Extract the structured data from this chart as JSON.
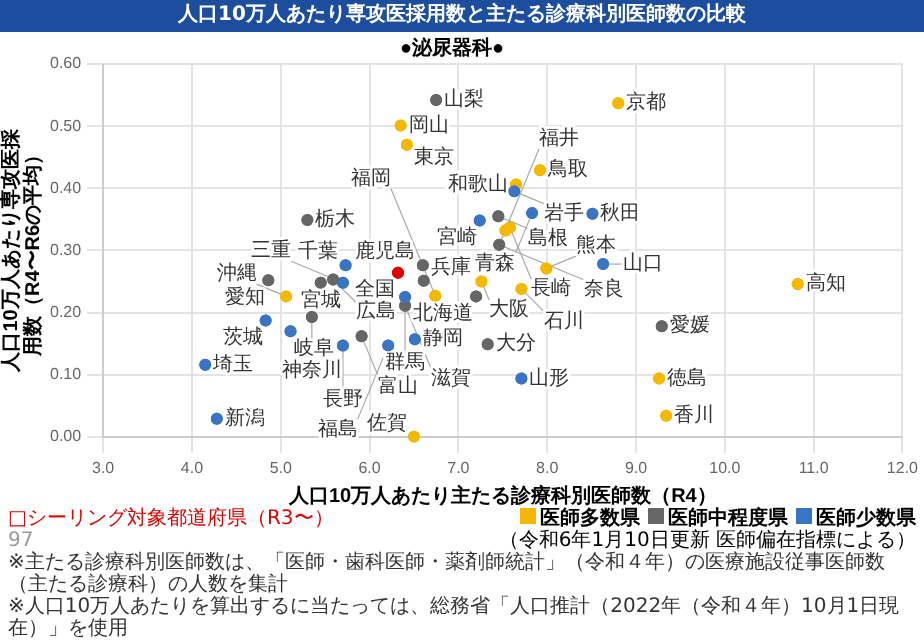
{
  "chart_data": {
    "type": "scatter",
    "title": "人口10万人あたり専攻医採用数と主たる診療科別医師数の比較",
    "subtitle": "●泌尿器科●",
    "xlabel": "人口10万人あたり主たる診療科別医師数（R4）",
    "ylabel": "人口10万人あたり専攻医採用数（R4〜R6の平均）",
    "xlim": [
      3,
      12
    ],
    "xticks": [
      {
        "value": 3,
        "label": "3.0"
      },
      {
        "value": 4,
        "label": "4.0"
      },
      {
        "value": 5,
        "label": "5.0"
      },
      {
        "value": 6,
        "label": "6.0"
      },
      {
        "value": 7,
        "label": "7.0"
      },
      {
        "value": 8,
        "label": "8.0"
      },
      {
        "value": 9,
        "label": "9.0"
      },
      {
        "value": 10,
        "label": "10.0"
      },
      {
        "value": 11,
        "label": "11.0"
      },
      {
        "value": 12,
        "label": "12.0"
      }
    ],
    "ylim": [
      0,
      0.6
    ],
    "yticks": [
      {
        "value": 0,
        "label": "0.00"
      },
      {
        "value": 0.1,
        "label": "0.10"
      },
      {
        "value": 0.2,
        "label": "0.20"
      },
      {
        "value": 0.3,
        "label": "0.30"
      },
      {
        "value": 0.4,
        "label": "0.40"
      },
      {
        "value": 0.5,
        "label": "0.50"
      },
      {
        "value": 0.6,
        "label": "0.60"
      }
    ],
    "grid": true,
    "legend": "bottom right",
    "marker": "circle",
    "series": [
      {
        "name": "医師多数県",
        "color": "#f5b800",
        "x": [
          6.35,
          6.42,
          8.8,
          7.92,
          7.65,
          7.53,
          7.58,
          7.99,
          7.26,
          7.71,
          10.82,
          9.26,
          9.34,
          5.06,
          6.74,
          6.5
        ],
        "values": [
          0.501,
          0.47,
          0.537,
          0.429,
          0.406,
          0.332,
          0.337,
          0.271,
          0.25,
          0.238,
          0.246,
          0.094,
          0.034,
          0.226,
          0.227,
          0
        ]
      },
      {
        "name": "医師中程度県",
        "color": "#666666",
        "x": [
          6.75,
          5.3,
          7.45,
          7.46,
          7.2,
          9.29,
          7.33,
          6.6,
          6.61,
          4.86,
          5.59,
          5.45,
          6.4,
          5.35,
          5.91
        ],
        "values": [
          0.542,
          0.349,
          0.355,
          0.309,
          0.226,
          0.178,
          0.149,
          0.276,
          0.251,
          0.252,
          0.253,
          0.248,
          0.211,
          0.193,
          0.162
        ]
      },
      {
        "name": "医師少数県",
        "color": "#3a75c4",
        "x": [
          7.24,
          7.63,
          7.83,
          8.51,
          8.63,
          7.71,
          5.73,
          5.7,
          6.4,
          4.83,
          5.11,
          6.51,
          5.7,
          6.21,
          4.15,
          4.28
        ],
        "values": [
          0.348,
          0.395,
          0.36,
          0.359,
          0.278,
          0.094,
          0.276,
          0.248,
          0.225,
          0.187,
          0.17,
          0.157,
          0.147,
          0.147,
          0.116,
          0.029
        ]
      },
      {
        "color": "#e00000",
        "x": [
          6.32
        ],
        "values": [
          0.264
        ]
      }
    ],
    "annotations": [
      {
        "text": "山梨",
        "x": 6.75,
        "y": 0.542
      },
      {
        "text": "岡山",
        "x": 6.35,
        "y": 0.501
      },
      {
        "text": "東京",
        "x": 6.42,
        "y": 0.47
      },
      {
        "text": "京都",
        "x": 8.8,
        "y": 0.537
      },
      {
        "text": "鳥取",
        "x": 7.92,
        "y": 0.429
      },
      {
        "text": "和歌山",
        "x": 7.65,
        "y": 0.406
      },
      {
        "text": "岩手",
        "x": 7.63,
        "y": 0.395
      },
      {
        "text": "栃木",
        "x": 5.3,
        "y": 0.349
      },
      {
        "text": "宮崎",
        "x": 7.24,
        "y": 0.348
      },
      {
        "text": "島根",
        "x": 7.45,
        "y": 0.355
      },
      {
        "text": "青森",
        "x": 7.83,
        "y": 0.36
      },
      {
        "text": "秋田",
        "x": 8.51,
        "y": 0.359
      },
      {
        "text": "長崎",
        "x": 7.58,
        "y": 0.337
      },
      {
        "text": "奈良",
        "x": 7.46,
        "y": 0.309
      },
      {
        "text": "福井",
        "x": 7.46,
        "y": 0.309
      },
      {
        "text": "熊本",
        "x": 7.99,
        "y": 0.271
      },
      {
        "text": "山口",
        "x": 8.63,
        "y": 0.278
      },
      {
        "text": "大阪",
        "x": 7.26,
        "y": 0.25
      },
      {
        "text": "石川",
        "x": 7.71,
        "y": 0.238
      },
      {
        "text": "北海道",
        "x": 7.2,
        "y": 0.226
      },
      {
        "text": "高知",
        "x": 10.82,
        "y": 0.246
      },
      {
        "text": "愛媛",
        "x": 9.29,
        "y": 0.178
      },
      {
        "text": "大分",
        "x": 7.33,
        "y": 0.149
      },
      {
        "text": "山形",
        "x": 7.71,
        "y": 0.094
      },
      {
        "text": "徳島",
        "x": 9.26,
        "y": 0.094
      },
      {
        "text": "香川",
        "x": 9.34,
        "y": 0.034
      },
      {
        "text": "千葉",
        "x": 5.73,
        "y": 0.276
      },
      {
        "text": "全国",
        "x": 6.32,
        "y": 0.264
      },
      {
        "text": "鹿児島",
        "x": 6.6,
        "y": 0.276
      },
      {
        "text": "兵庫",
        "x": 6.61,
        "y": 0.251
      },
      {
        "text": "愛知",
        "x": 4.86,
        "y": 0.252
      },
      {
        "text": "広島",
        "x": 5.59,
        "y": 0.253
      },
      {
        "text": "宮城",
        "x": 5.45,
        "y": 0.248
      },
      {
        "text": "三重",
        "x": 5.7,
        "y": 0.248
      },
      {
        "text": "沖縄",
        "x": 5.06,
        "y": 0.226
      },
      {
        "text": "群馬",
        "x": 6.4,
        "y": 0.225
      },
      {
        "text": "滋賀",
        "x": 6.4,
        "y": 0.211
      },
      {
        "text": "福岡",
        "x": 6.74,
        "y": 0.227
      },
      {
        "text": "茨城",
        "x": 4.83,
        "y": 0.187
      },
      {
        "text": "神奈川",
        "x": 5.35,
        "y": 0.193
      },
      {
        "text": "岐阜",
        "x": 5.11,
        "y": 0.17
      },
      {
        "text": "富山",
        "x": 5.91,
        "y": 0.162
      },
      {
        "text": "静岡",
        "x": 6.51,
        "y": 0.157
      },
      {
        "text": "長野",
        "x": 5.7,
        "y": 0.147
      },
      {
        "text": "福島",
        "x": 6.21,
        "y": 0.147
      },
      {
        "text": "埼玉",
        "x": 4.15,
        "y": 0.116
      },
      {
        "text": "新潟",
        "x": 4.28,
        "y": 0.029
      },
      {
        "text": "佐賀",
        "x": 6.5,
        "y": 0
      },
      "（令和6年1月10日更新 医師偏在指標による）",
      "□シーリング対象都道府県（R3〜）",
      "※主たる診療科別医師数は、「医師・歯科医師・薬剤師統計」（令和４年）の医療施設従事医師数（主たる診療科）の人数を集計",
      "※人口10万人あたりを算出するに当たっては、総務省「人口推計（2022年（令和４年）10月1日現在）」を使用",
      "97"
    ]
  }
}
